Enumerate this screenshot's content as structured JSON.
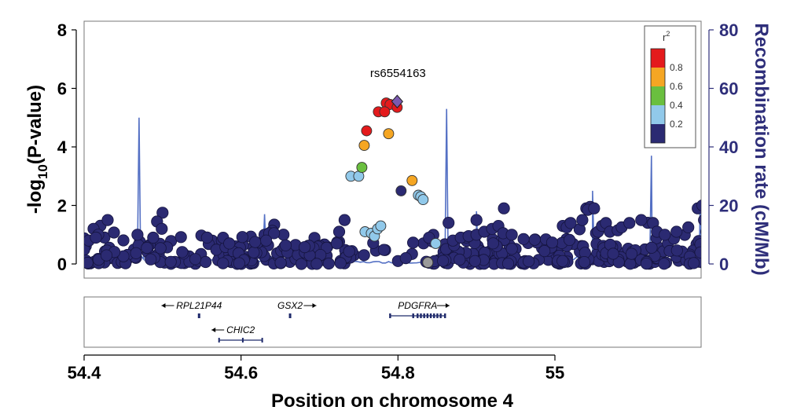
{
  "chart_data": {
    "type": "scatter",
    "title": "",
    "xlabel": "Position on chromosome 4",
    "ylabel_left": "-log10(P-value)",
    "ylabel_left_base": "-log",
    "ylabel_left_sub": "10",
    "ylabel_left_rest": "(P-value)",
    "ylabel_right": "Recombination rate (cM/Mb)",
    "xlim": [
      54.4,
      55.2
    ],
    "ylim_left": [
      0,
      8.5
    ],
    "ylim_right": [
      0,
      85
    ],
    "x_ticks": [
      {
        "value": 54.4,
        "label": "54.4"
      },
      {
        "value": 54.6,
        "label": "54.6"
      },
      {
        "value": 54.8,
        "label": "54.8"
      },
      {
        "value": 55.0,
        "label": "55"
      }
    ],
    "y_left_ticks": [
      {
        "value": 0,
        "label": "0"
      },
      {
        "value": 2,
        "label": "2"
      },
      {
        "value": 4,
        "label": "4"
      },
      {
        "value": 6,
        "label": "6"
      },
      {
        "value": 8,
        "label": "8"
      }
    ],
    "y_right_ticks": [
      {
        "value": 0,
        "label": "0"
      },
      {
        "value": 20,
        "label": "20"
      },
      {
        "value": 40,
        "label": "40"
      },
      {
        "value": 60,
        "label": "60"
      },
      {
        "value": 80,
        "label": "80"
      }
    ],
    "grid": false,
    "colors": {
      "r2_0.8-1.0": "#e41a1c",
      "r2_0.6-0.8": "#f5a623",
      "r2_0.4-0.6": "#6abf3f",
      "r2_0.2-0.4": "#91c9ea",
      "r2_0-0.2": "#2b2a72",
      "no_r2": "#9a9a9a",
      "lead_snp": "#7b5ab0",
      "recombination_line": "#5470c4",
      "axis_right": "#2e2e7a"
    },
    "legend": {
      "title": "r",
      "title_sup": "2",
      "position": "top-right",
      "labels": [
        "0.8",
        "0.6",
        "0.4",
        "0.2"
      ]
    },
    "annotation": {
      "text": "rs6554163",
      "x": 54.799,
      "y": 5.55
    },
    "lead_snp": {
      "x": 54.799,
      "y": 5.55
    },
    "highlighted_snps": [
      {
        "x": 54.785,
        "y": 5.5,
        "r2": 0.9
      },
      {
        "x": 54.79,
        "y": 5.45,
        "r2": 0.9
      },
      {
        "x": 54.799,
        "y": 5.35,
        "r2": 0.9
      },
      {
        "x": 54.775,
        "y": 5.2,
        "r2": 0.9
      },
      {
        "x": 54.783,
        "y": 5.2,
        "r2": 0.9
      },
      {
        "x": 54.76,
        "y": 4.55,
        "r2": 0.9
      },
      {
        "x": 54.757,
        "y": 4.05,
        "r2": 0.7
      },
      {
        "x": 54.788,
        "y": 4.45,
        "r2": 0.7
      },
      {
        "x": 54.818,
        "y": 2.85,
        "r2": 0.7
      },
      {
        "x": 54.754,
        "y": 3.3,
        "r2": 0.5
      },
      {
        "x": 54.74,
        "y": 3.0,
        "r2": 0.3
      },
      {
        "x": 54.75,
        "y": 3.0,
        "r2": 0.3
      },
      {
        "x": 54.826,
        "y": 2.35,
        "r2": 0.3
      },
      {
        "x": 54.829,
        "y": 2.3,
        "r2": 0.3
      },
      {
        "x": 54.832,
        "y": 2.2,
        "r2": 0.3
      },
      {
        "x": 54.758,
        "y": 1.1,
        "r2": 0.3
      },
      {
        "x": 54.766,
        "y": 1.05,
        "r2": 0.3
      },
      {
        "x": 54.77,
        "y": 0.95,
        "r2": 0.3
      },
      {
        "x": 54.774,
        "y": 1.2,
        "r2": 0.3
      },
      {
        "x": 54.778,
        "y": 1.3,
        "r2": 0.3
      },
      {
        "x": 54.848,
        "y": 0.7,
        "r2": 0.3
      },
      {
        "x": 54.804,
        "y": 2.5,
        "r2": 0.1
      },
      {
        "x": 54.838,
        "y": 0.05,
        "r2": null
      }
    ],
    "background_snps_note": "Dense scatter of low-r2 SNPs (-log10 P mostly 0-1.1, isolated peaks up to ~2.0) across 54.40-55.20 Mb",
    "recombination_peaks": [
      {
        "x": 54.47,
        "rate": 50
      },
      {
        "x": 54.63,
        "rate": 17
      },
      {
        "x": 54.862,
        "rate": 53
      },
      {
        "x": 54.9,
        "rate": 18
      },
      {
        "x": 55.048,
        "rate": 25
      },
      {
        "x": 55.123,
        "rate": 37
      },
      {
        "x": 55.185,
        "rate": 20
      }
    ],
    "genes": [
      {
        "name": "RPL21P44",
        "start": 54.545,
        "end": 54.548,
        "strand": "-",
        "row": 0
      },
      {
        "name": "GSX2",
        "start": 54.661,
        "end": 54.664,
        "strand": "+",
        "row": 0
      },
      {
        "name": "PDGFRA",
        "start": 54.79,
        "end": 54.86,
        "strand": "+",
        "row": 0
      },
      {
        "name": "CHIC2",
        "start": 54.572,
        "end": 54.627,
        "strand": "-",
        "row": 1
      }
    ]
  }
}
